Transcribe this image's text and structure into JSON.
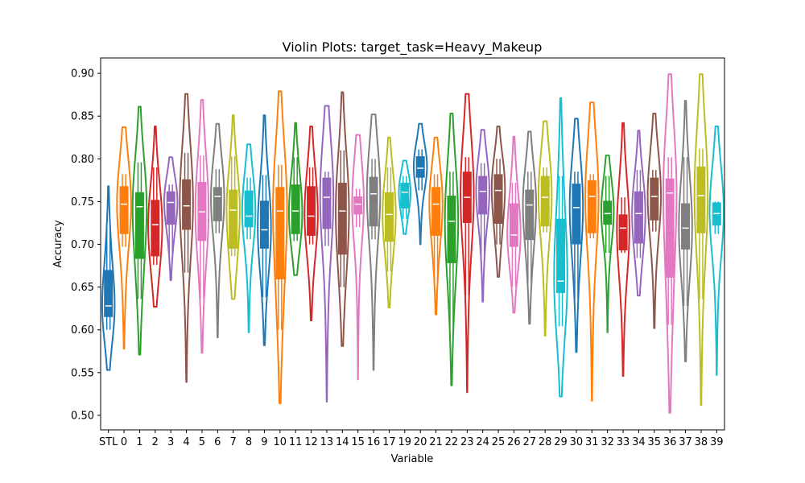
{
  "chart_data": {
    "type": "violin",
    "title": "Violin Plots: target_task=Heavy_Makeup",
    "xlabel": "Variable",
    "ylabel": "Accuracy",
    "ylim": [
      0.483,
      0.918
    ],
    "yticks": [
      "0.50",
      "0.55",
      "0.60",
      "0.65",
      "0.70",
      "0.75",
      "0.80",
      "0.85",
      "0.90"
    ],
    "grid": false,
    "palette": [
      "#1f77b4",
      "#ff7f0e",
      "#2ca02c",
      "#d62728",
      "#9467bd",
      "#8c564b",
      "#e377c2",
      "#7f7f7f",
      "#bcbd22",
      "#17becf"
    ],
    "categories": [
      "STL",
      "0",
      "1",
      "2",
      "3",
      "4",
      "5",
      "6",
      "7",
      "8",
      "9",
      "10",
      "11",
      "12",
      "13",
      "14",
      "15",
      "16",
      "17",
      "19",
      "20",
      "21",
      "22",
      "23",
      "24",
      "25",
      "26",
      "27",
      "28",
      "29",
      "30",
      "31",
      "32",
      "33",
      "34",
      "35",
      "36",
      "37",
      "38",
      "39"
    ],
    "series": [
      {
        "category": "STL",
        "min": 0.553,
        "q1": 0.615,
        "median": 0.628,
        "q3": 0.67,
        "max": 0.768,
        "wq1": 0.6,
        "wq3": 0.72,
        "w": 0.8
      },
      {
        "category": "0",
        "min": 0.578,
        "q1": 0.712,
        "median": 0.747,
        "q3": 0.768,
        "max": 0.837,
        "wq1": 0.697,
        "wq3": 0.782,
        "w": 0.9
      },
      {
        "category": "1",
        "min": 0.571,
        "q1": 0.683,
        "median": 0.744,
        "q3": 0.761,
        "max": 0.861,
        "wq1": 0.636,
        "wq3": 0.796,
        "w": 0.9
      },
      {
        "category": "2",
        "min": 0.627,
        "q1": 0.686,
        "median": 0.723,
        "q3": 0.752,
        "max": 0.838,
        "wq1": 0.676,
        "wq3": 0.79,
        "w": 0.9
      },
      {
        "category": "3",
        "min": 0.658,
        "q1": 0.723,
        "median": 0.749,
        "q3": 0.762,
        "max": 0.802,
        "wq1": 0.69,
        "wq3": 0.77,
        "w": 0.85
      },
      {
        "category": "4",
        "min": 0.539,
        "q1": 0.717,
        "median": 0.745,
        "q3": 0.776,
        "max": 0.876,
        "wq1": 0.667,
        "wq3": 0.807,
        "w": 0.85
      },
      {
        "category": "5",
        "min": 0.573,
        "q1": 0.704,
        "median": 0.738,
        "q3": 0.773,
        "max": 0.869,
        "wq1": 0.636,
        "wq3": 0.804,
        "w": 0.85
      },
      {
        "category": "6",
        "min": 0.591,
        "q1": 0.727,
        "median": 0.756,
        "q3": 0.767,
        "max": 0.841,
        "wq1": 0.713,
        "wq3": 0.788,
        "w": 0.85
      },
      {
        "category": "7",
        "min": 0.636,
        "q1": 0.695,
        "median": 0.74,
        "q3": 0.764,
        "max": 0.851,
        "wq1": 0.686,
        "wq3": 0.803,
        "w": 0.85
      },
      {
        "category": "8",
        "min": 0.597,
        "q1": 0.72,
        "median": 0.733,
        "q3": 0.763,
        "max": 0.817,
        "wq1": 0.706,
        "wq3": 0.778,
        "w": 0.85
      },
      {
        "category": "9",
        "min": 0.582,
        "q1": 0.695,
        "median": 0.717,
        "q3": 0.751,
        "max": 0.851,
        "wq1": 0.638,
        "wq3": 0.781,
        "w": 0.85
      },
      {
        "category": "10",
        "min": 0.514,
        "q1": 0.659,
        "median": 0.739,
        "q3": 0.767,
        "max": 0.879,
        "wq1": 0.6,
        "wq3": 0.793,
        "w": 0.9
      },
      {
        "category": "11",
        "min": 0.664,
        "q1": 0.712,
        "median": 0.739,
        "q3": 0.77,
        "max": 0.842,
        "wq1": 0.704,
        "wq3": 0.802,
        "w": 0.85
      },
      {
        "category": "12",
        "min": 0.611,
        "q1": 0.71,
        "median": 0.733,
        "q3": 0.768,
        "max": 0.838,
        "wq1": 0.7,
        "wq3": 0.79,
        "w": 0.85
      },
      {
        "category": "13",
        "min": 0.516,
        "q1": 0.718,
        "median": 0.755,
        "q3": 0.778,
        "max": 0.862,
        "wq1": 0.698,
        "wq3": 0.785,
        "w": 0.85
      },
      {
        "category": "14",
        "min": 0.581,
        "q1": 0.688,
        "median": 0.739,
        "q3": 0.772,
        "max": 0.878,
        "wq1": 0.65,
        "wq3": 0.81,
        "w": 0.85
      },
      {
        "category": "15",
        "min": 0.542,
        "q1": 0.735,
        "median": 0.747,
        "q3": 0.756,
        "max": 0.828,
        "wq1": 0.72,
        "wq3": 0.765,
        "w": 0.75
      },
      {
        "category": "16",
        "min": 0.553,
        "q1": 0.721,
        "median": 0.759,
        "q3": 0.779,
        "max": 0.852,
        "wq1": 0.706,
        "wq3": 0.8,
        "w": 0.85
      },
      {
        "category": "17",
        "min": 0.626,
        "q1": 0.703,
        "median": 0.735,
        "q3": 0.761,
        "max": 0.825,
        "wq1": 0.668,
        "wq3": 0.79,
        "w": 0.85
      },
      {
        "category": "19",
        "min": 0.712,
        "q1": 0.742,
        "median": 0.761,
        "q3": 0.772,
        "max": 0.798,
        "wq1": 0.73,
        "wq3": 0.78,
        "w": 0.75
      },
      {
        "category": "20",
        "min": 0.7,
        "q1": 0.778,
        "median": 0.789,
        "q3": 0.803,
        "max": 0.841,
        "wq1": 0.763,
        "wq3": 0.811,
        "w": 0.85
      },
      {
        "category": "21",
        "min": 0.618,
        "q1": 0.71,
        "median": 0.747,
        "q3": 0.767,
        "max": 0.825,
        "wq1": 0.66,
        "wq3": 0.782,
        "w": 0.85
      },
      {
        "category": "22",
        "min": 0.535,
        "q1": 0.678,
        "median": 0.727,
        "q3": 0.757,
        "max": 0.853,
        "wq1": 0.602,
        "wq3": 0.785,
        "w": 0.85
      },
      {
        "category": "23",
        "min": 0.527,
        "q1": 0.725,
        "median": 0.755,
        "q3": 0.785,
        "max": 0.876,
        "wq1": 0.64,
        "wq3": 0.802,
        "w": 0.85
      },
      {
        "category": "24",
        "min": 0.633,
        "q1": 0.735,
        "median": 0.762,
        "q3": 0.78,
        "max": 0.834,
        "wq1": 0.676,
        "wq3": 0.795,
        "w": 0.85
      },
      {
        "category": "25",
        "min": 0.662,
        "q1": 0.724,
        "median": 0.763,
        "q3": 0.782,
        "max": 0.838,
        "wq1": 0.7,
        "wq3": 0.8,
        "w": 0.85
      },
      {
        "category": "26",
        "min": 0.62,
        "q1": 0.697,
        "median": 0.711,
        "q3": 0.748,
        "max": 0.826,
        "wq1": 0.65,
        "wq3": 0.772,
        "w": 0.85
      },
      {
        "category": "27",
        "min": 0.607,
        "q1": 0.705,
        "median": 0.746,
        "q3": 0.764,
        "max": 0.832,
        "wq1": 0.655,
        "wq3": 0.785,
        "w": 0.85
      },
      {
        "category": "28",
        "min": 0.593,
        "q1": 0.721,
        "median": 0.755,
        "q3": 0.78,
        "max": 0.844,
        "wq1": 0.714,
        "wq3": 0.79,
        "w": 0.85
      },
      {
        "category": "29",
        "min": 0.522,
        "q1": 0.643,
        "median": 0.657,
        "q3": 0.73,
        "max": 0.871,
        "wq1": 0.604,
        "wq3": 0.78,
        "w": 0.85
      },
      {
        "category": "30",
        "min": 0.574,
        "q1": 0.7,
        "median": 0.743,
        "q3": 0.771,
        "max": 0.847,
        "wq1": 0.636,
        "wq3": 0.785,
        "w": 0.85
      },
      {
        "category": "31",
        "min": 0.517,
        "q1": 0.713,
        "median": 0.756,
        "q3": 0.775,
        "max": 0.866,
        "wq1": 0.707,
        "wq3": 0.782,
        "w": 0.85
      },
      {
        "category": "32",
        "min": 0.597,
        "q1": 0.723,
        "median": 0.736,
        "q3": 0.751,
        "max": 0.804,
        "wq1": 0.69,
        "wq3": 0.78,
        "w": 0.8
      },
      {
        "category": "33",
        "min": 0.546,
        "q1": 0.693,
        "median": 0.719,
        "q3": 0.735,
        "max": 0.842,
        "wq1": 0.69,
        "wq3": 0.755,
        "w": 0.8
      },
      {
        "category": "34",
        "min": 0.64,
        "q1": 0.701,
        "median": 0.736,
        "q3": 0.762,
        "max": 0.833,
        "wq1": 0.684,
        "wq3": 0.787,
        "w": 0.85
      },
      {
        "category": "35",
        "min": 0.602,
        "q1": 0.728,
        "median": 0.756,
        "q3": 0.778,
        "max": 0.853,
        "wq1": 0.715,
        "wq3": 0.787,
        "w": 0.85
      },
      {
        "category": "36",
        "min": 0.503,
        "q1": 0.661,
        "median": 0.76,
        "q3": 0.777,
        "max": 0.899,
        "wq1": 0.606,
        "wq3": 0.802,
        "w": 0.85
      },
      {
        "category": "37",
        "min": 0.563,
        "q1": 0.694,
        "median": 0.719,
        "q3": 0.748,
        "max": 0.868,
        "wq1": 0.628,
        "wq3": 0.802,
        "w": 0.85
      },
      {
        "category": "38",
        "min": 0.512,
        "q1": 0.713,
        "median": 0.757,
        "q3": 0.791,
        "max": 0.899,
        "wq1": 0.636,
        "wq3": 0.812,
        "w": 0.85
      },
      {
        "category": "39",
        "min": 0.547,
        "q1": 0.722,
        "median": 0.736,
        "q3": 0.749,
        "max": 0.838,
        "wq1": 0.712,
        "wq3": 0.75,
        "w": 0.9
      }
    ]
  }
}
